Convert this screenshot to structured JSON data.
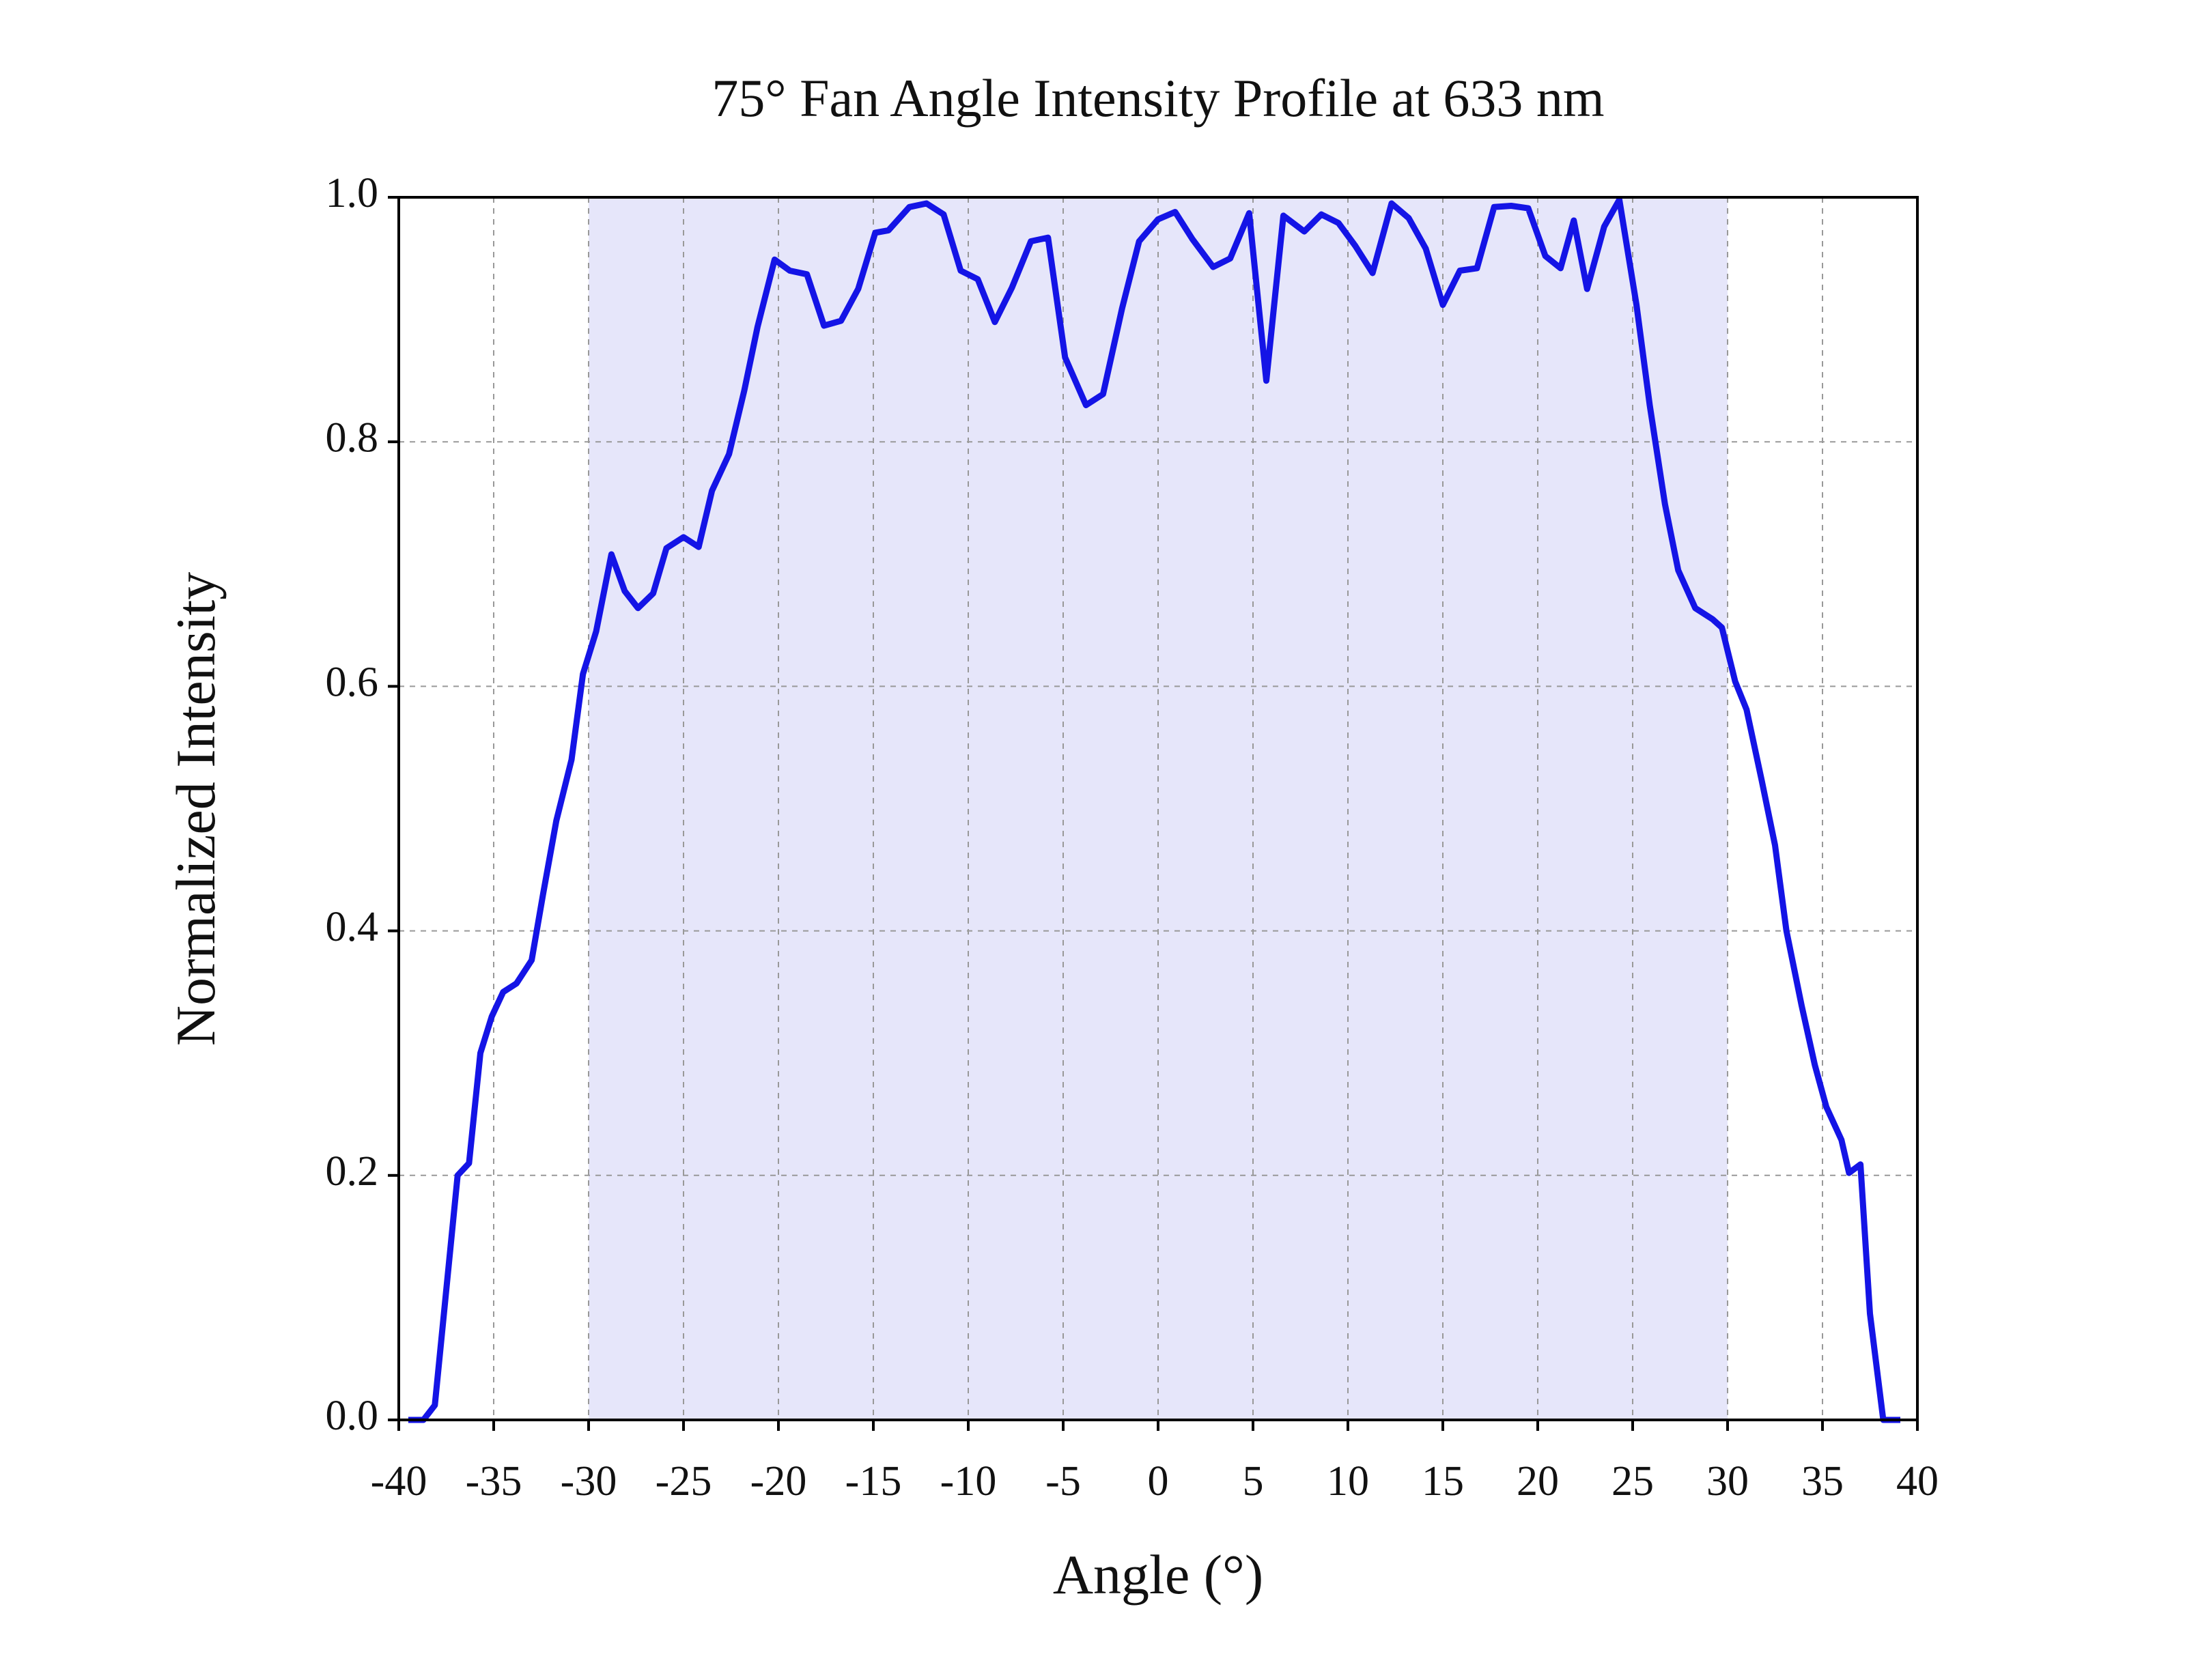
{
  "chart_data": {
    "type": "line",
    "title": "75° Fan Angle Intensity Profile at 633 nm",
    "xlabel": "Angle (°)",
    "ylabel": "Normalized Intensity",
    "x": [
      -39.5,
      -38.7,
      -38.1,
      -36.9,
      -36.3,
      -35.7,
      -35.1,
      -34.5,
      -33.8,
      -33.0,
      -32.4,
      -31.7,
      -30.9,
      -30.3,
      -29.6,
      -28.8,
      -28.1,
      -27.4,
      -26.6,
      -25.9,
      -25.0,
      -24.2,
      -23.5,
      -22.6,
      -21.8,
      -21.1,
      -20.2,
      -19.4,
      -18.5,
      -17.6,
      -16.7,
      -15.8,
      -14.9,
      -14.2,
      -13.1,
      -12.2,
      -11.3,
      -10.4,
      -9.5,
      -8.6,
      -7.7,
      -6.7,
      -5.8,
      -4.9,
      -3.8,
      -2.9,
      -1.9,
      -1.0,
      0.0,
      0.9,
      1.8,
      2.9,
      3.8,
      4.8,
      5.7,
      6.6,
      7.7,
      8.6,
      9.5,
      10.4,
      11.3,
      12.3,
      13.2,
      14.1,
      15.0,
      15.9,
      16.8,
      17.7,
      18.6,
      19.5,
      20.4,
      21.2,
      21.9,
      22.6,
      23.5,
      24.3,
      25.2,
      25.9,
      26.7,
      27.4,
      28.3,
      29.2,
      29.7,
      30.4,
      31.0,
      31.8,
      32.5,
      33.1,
      33.9,
      34.6,
      35.2,
      36.0,
      36.4,
      37.0,
      37.5,
      38.2,
      39.1
    ],
    "values": [
      0,
      0,
      0.012,
      0.2,
      0.21,
      0.3,
      0.33,
      0.35,
      0.357,
      0.376,
      0.43,
      0.49,
      0.54,
      0.61,
      0.645,
      0.708,
      0.678,
      0.664,
      0.676,
      0.713,
      0.722,
      0.714,
      0.76,
      0.79,
      0.842,
      0.894,
      0.949,
      0.94,
      0.937,
      0.895,
      0.899,
      0.925,
      0.971,
      0.973,
      0.992,
      0.995,
      0.986,
      0.94,
      0.933,
      0.898,
      0.926,
      0.964,
      0.967,
      0.869,
      0.83,
      0.839,
      0.909,
      0.964,
      0.982,
      0.988,
      0.966,
      0.943,
      0.95,
      0.987,
      0.85,
      0.985,
      0.972,
      0.986,
      0.979,
      0.96,
      0.938,
      0.995,
      0.983,
      0.958,
      0.912,
      0.94,
      0.942,
      0.992,
      0.993,
      0.991,
      0.952,
      0.942,
      0.981,
      0.925,
      0.976,
      0.998,
      0.912,
      0.83,
      0.749,
      0.695,
      0.664,
      0.655,
      0.648,
      0.604,
      0.581,
      0.523,
      0.47,
      0.4,
      0.339,
      0.29,
      0.256,
      0.229,
      0.202,
      0.209,
      0.087,
      0,
      0
    ],
    "color": "#1414e6",
    "highlight_range": [
      -30,
      30
    ],
    "highlight_color": "#e6e6fa",
    "xlim": [
      -40,
      40
    ],
    "xticks": [
      -40,
      -35,
      -30,
      -25,
      -20,
      -15,
      -10,
      -5,
      0,
      5,
      10,
      15,
      20,
      25,
      30,
      35,
      40
    ],
    "ylim": [
      0,
      1
    ],
    "yticks": [
      {
        "value": 0,
        "label": "0.0"
      },
      {
        "value": 0.2,
        "label": "0.2"
      },
      {
        "value": 0.4,
        "label": "0.4"
      },
      {
        "value": 0.6,
        "label": "0.6"
      },
      {
        "value": 0.8,
        "label": "0.8"
      },
      {
        "value": 1,
        "label": "1.0"
      }
    ],
    "grid": true
  }
}
